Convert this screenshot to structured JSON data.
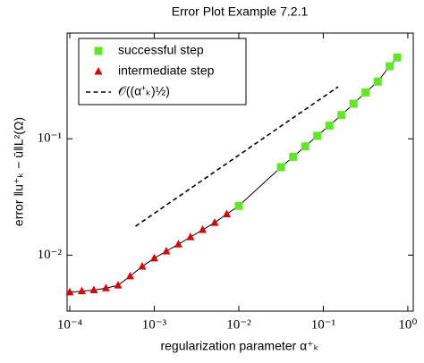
{
  "chart_data": {
    "type": "line",
    "title": "Error Plot Example 7.2.1",
    "x_label": "regularization parameter α⁺ₖ",
    "y_label": "error ‖u⁺ₖ − ū‖L²(Ω)",
    "log_x": true,
    "log_y": true,
    "xlim": [
      9.3e-05,
      1.16
    ],
    "ylim": [
      0.0033,
      0.81
    ],
    "xticks": [
      {
        "value": 0.0001,
        "label": "10⁻⁴"
      },
      {
        "value": 0.001,
        "label": "10⁻³"
      },
      {
        "value": 0.01,
        "label": "10⁻²"
      },
      {
        "value": 0.1,
        "label": "10⁻¹"
      },
      {
        "value": 1,
        "label": "10⁰"
      }
    ],
    "yticks": [
      {
        "value": 0.01,
        "label": "10⁻²"
      },
      {
        "value": 0.1,
        "label": "10⁻¹"
      }
    ],
    "legend": "upper left",
    "series": [
      {
        "name": "successful step",
        "color": "#5fe827",
        "marker": "square",
        "x": [
          0.01,
          0.0316,
          0.044,
          0.0611,
          0.0849,
          0.118,
          0.164,
          0.228,
          0.316,
          0.44,
          0.611,
          0.75
        ],
        "values": [
          0.0265,
          0.057,
          0.07,
          0.086,
          0.106,
          0.13,
          0.16,
          0.2,
          0.25,
          0.31,
          0.42,
          0.5
        ]
      },
      {
        "name": "intermediate step",
        "color": "#dd0000",
        "marker": "triangle",
        "x": [
          0.0001,
          0.000139,
          0.000193,
          0.000268,
          0.000373,
          0.000518,
          0.00072,
          0.001,
          0.00139,
          0.00193,
          0.00268,
          0.00373,
          0.00518,
          0.0072
        ],
        "values": [
          0.0048,
          0.0049,
          0.005,
          0.0052,
          0.0055,
          0.0066,
          0.008,
          0.0094,
          0.0108,
          0.0124,
          0.0143,
          0.0165,
          0.019,
          0.0225
        ]
      },
      {
        "name": "𝒪((α⁺ₖ)½)",
        "color": "#000000",
        "marker": "dashed",
        "x": [
          0.0006,
          0.15
        ],
        "values": [
          0.0177,
          0.28
        ]
      }
    ]
  }
}
